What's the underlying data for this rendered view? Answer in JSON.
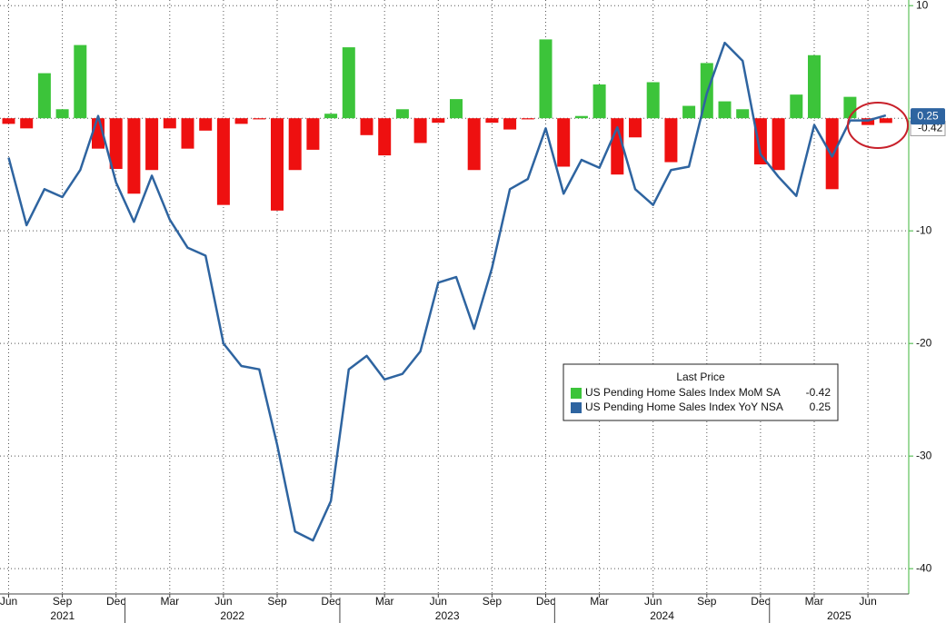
{
  "chart_data": {
    "type": "bar",
    "legend_title": "Last Price",
    "categories": [
      "Jun",
      null,
      null,
      "Sep",
      null,
      null,
      "Dec",
      null,
      null,
      "Mar",
      null,
      null,
      "Jun",
      null,
      null,
      "Sep",
      null,
      null,
      "Dec",
      null,
      null,
      "Mar",
      null,
      null,
      "Jun",
      null,
      null,
      "Sep",
      null,
      null,
      "Dec",
      null,
      null,
      "Mar",
      null,
      null,
      "Jun",
      null,
      null,
      "Sep",
      null,
      null,
      "Dec",
      null,
      null,
      "Mar",
      null,
      null,
      "Jun",
      null
    ],
    "years": [
      "2021",
      "2021",
      "2021",
      "2021",
      "2021",
      "2021",
      "2021",
      "2022",
      "2022",
      "2022",
      "2022",
      "2022",
      "2022",
      "2022",
      "2022",
      "2022",
      "2022",
      "2022",
      "2022",
      "2023",
      "2023",
      "2023",
      "2023",
      "2023",
      "2023",
      "2023",
      "2023",
      "2023",
      "2023",
      "2023",
      "2023",
      "2024",
      "2024",
      "2024",
      "2024",
      "2024",
      "2024",
      "2024",
      "2024",
      "2024",
      "2024",
      "2024",
      "2024",
      "2025",
      "2025",
      "2025",
      "2025",
      "2025",
      "2025",
      "2025"
    ],
    "series": [
      {
        "name": "US Pending Home Sales Index MoM SA",
        "type": "bar",
        "positive_color": "#3cc43a",
        "negative_color": "#ee1010",
        "values": [
          -0.5,
          -0.9,
          4.0,
          0.8,
          6.5,
          -2.7,
          -4.5,
          -6.7,
          -4.6,
          -0.9,
          -2.7,
          -1.1,
          -7.7,
          -0.5,
          -0.1,
          -8.2,
          -4.6,
          -2.8,
          0.4,
          6.3,
          -1.5,
          -3.3,
          0.8,
          -2.2,
          -0.4,
          1.7,
          -4.6,
          -0.4,
          -1.0,
          -0.1,
          7.0,
          -4.3,
          0.2,
          3.0,
          -5.0,
          -1.7,
          3.2,
          -3.9,
          1.1,
          4.9,
          1.5,
          0.8,
          -4.1,
          -4.6,
          2.1,
          5.6,
          -6.3,
          1.9,
          -0.6,
          -0.42
        ]
      },
      {
        "name": "US Pending Home Sales Index YoY NSA",
        "type": "line",
        "color": "#2e64a0",
        "values": [
          -3.5,
          -9.5,
          -6.3,
          -7.0,
          -4.6,
          0.2,
          -5.7,
          -9.2,
          -5.1,
          -9.0,
          -11.5,
          -12.2,
          -20.0,
          -22.0,
          -22.3,
          -29.0,
          -36.7,
          -37.5,
          -34.0,
          -22.3,
          -21.1,
          -23.2,
          -22.7,
          -20.7,
          -14.6,
          -14.1,
          -18.7,
          -13.3,
          -6.3,
          -5.4,
          -0.9,
          -6.7,
          -3.7,
          -4.4,
          -0.8,
          -6.3,
          -7.7,
          -4.6,
          -4.3,
          2.2,
          6.7,
          5.1,
          -3.2,
          -5.2,
          -6.9,
          -0.6,
          -3.4,
          -0.2,
          -0.2,
          0.25
        ]
      }
    ],
    "ylim": [
      -41.6,
      10.5
    ],
    "yticks": [
      10,
      0,
      -10,
      -20,
      -30,
      -40
    ],
    "grid": true
  }
}
